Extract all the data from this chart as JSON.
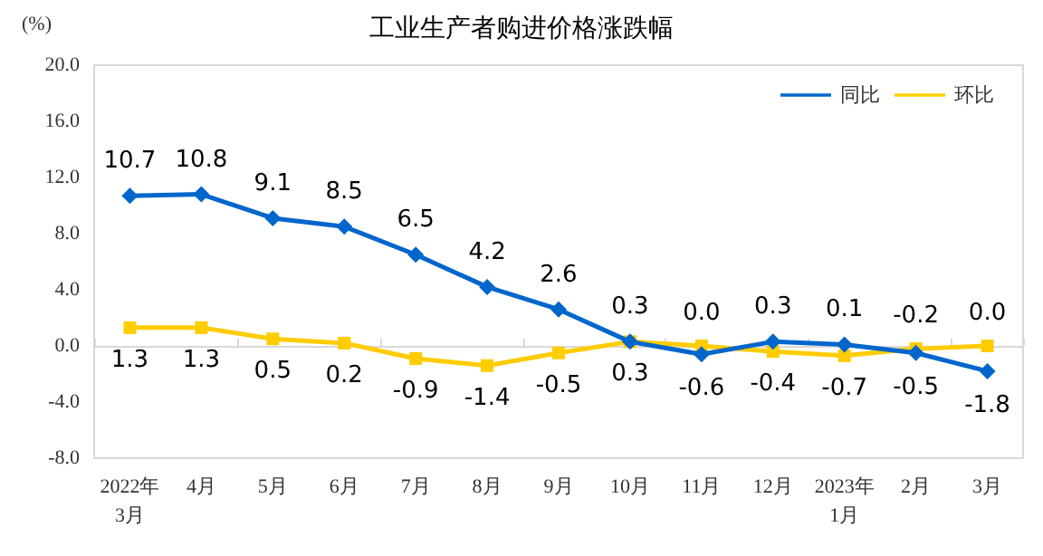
{
  "chart_data": {
    "type": "line",
    "title": "工业生产者购进价格涨跌幅",
    "ylabel": "(%)",
    "categories": [
      "2022年\n3月",
      "4月",
      "5月",
      "6月",
      "7月",
      "8月",
      "9月",
      "10月",
      "11月",
      "12月",
      "2023年\n1月",
      "2月",
      "3月"
    ],
    "series": [
      {
        "name": "同比",
        "color": "#0066cc",
        "marker": "diamond",
        "values": [
          10.7,
          10.8,
          9.1,
          8.5,
          6.5,
          4.2,
          2.6,
          0.3,
          -0.6,
          0.3,
          0.1,
          -0.5,
          -1.8
        ],
        "value_labels": [
          "10.7",
          "10.8",
          "9.1",
          "8.5",
          "6.5",
          "4.2",
          "2.6",
          "0.3",
          "-0.6",
          "0.3",
          "0.1",
          "-0.5",
          "-1.8"
        ]
      },
      {
        "name": "环比",
        "color": "#ffcc00",
        "marker": "square",
        "values": [
          1.3,
          1.3,
          0.5,
          0.2,
          -0.9,
          -1.4,
          -0.5,
          0.3,
          0.0,
          -0.4,
          -0.7,
          -0.2,
          0.0
        ],
        "value_labels": [
          "1.3",
          "1.3",
          "0.5",
          "0.2",
          "-0.9",
          "-1.4",
          "-0.5",
          "0.3",
          "0.0",
          "-0.4",
          "-0.7",
          "-0.2",
          "0.0"
        ]
      }
    ],
    "ylim": [
      -8,
      20
    ],
    "yticks": [
      {
        "value": -8,
        "label": "-8.0"
      },
      {
        "value": -4,
        "label": "-4.0"
      },
      {
        "value": 0,
        "label": "0.0"
      },
      {
        "value": 4,
        "label": "4.0"
      },
      {
        "value": 8,
        "label": "8.0"
      },
      {
        "value": 12,
        "label": "12.0"
      },
      {
        "value": 16,
        "label": "16.0"
      },
      {
        "value": 20,
        "label": "20.0"
      }
    ],
    "legend": "top right",
    "line_style": "solid"
  }
}
